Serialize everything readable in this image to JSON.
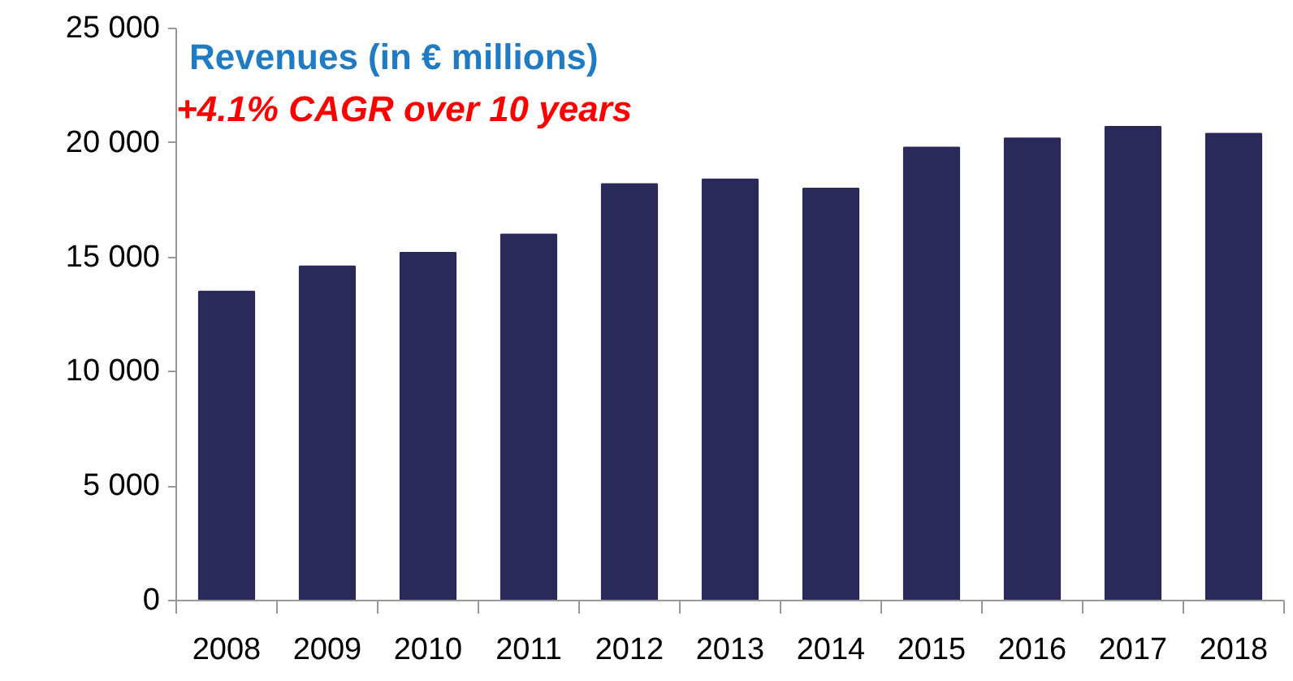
{
  "chart_data": {
    "type": "bar",
    "title": "Revenues (in € millions)",
    "subtitle": "+4.1% CAGR over 10 years",
    "categories": [
      "2008",
      "2009",
      "2010",
      "2011",
      "2012",
      "2013",
      "2014",
      "2015",
      "2016",
      "2017",
      "2018"
    ],
    "values": [
      13500,
      14600,
      15200,
      16000,
      18200,
      18400,
      18000,
      19800,
      20200,
      20700,
      20400
    ],
    "color": "#2a2a5a",
    "ylim": [
      0,
      25000
    ],
    "yticks": [
      {
        "value": 0,
        "label": "0"
      },
      {
        "value": 5000,
        "label": "5 000"
      },
      {
        "value": 10000,
        "label": "10 000"
      },
      {
        "value": 15000,
        "label": "15 000"
      },
      {
        "value": 20000,
        "label": "20 000"
      },
      {
        "value": 25000,
        "label": "25 000"
      }
    ],
    "grid": false
  }
}
